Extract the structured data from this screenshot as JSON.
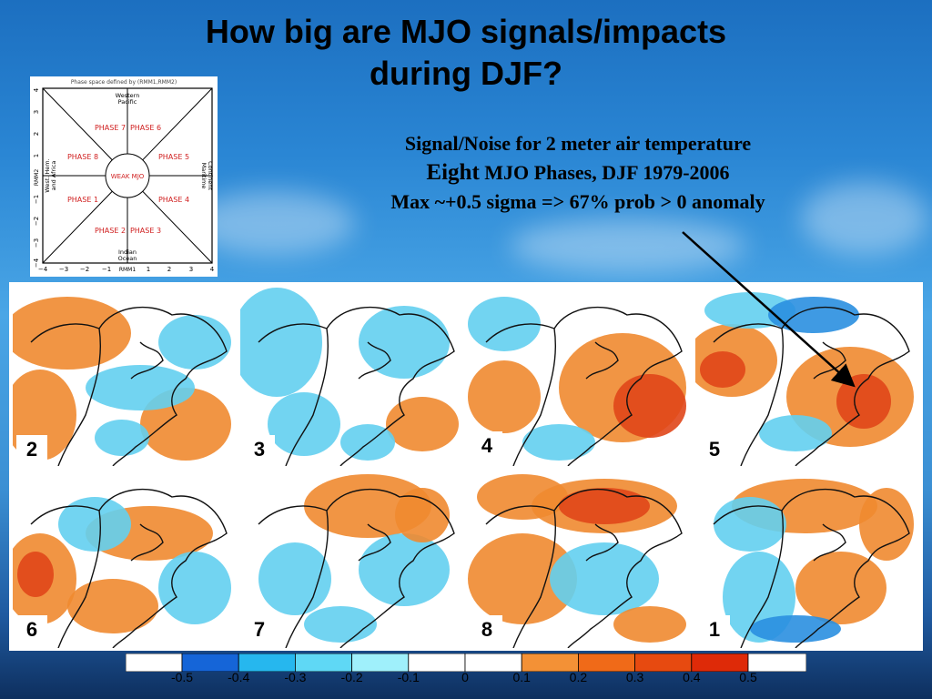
{
  "title_line1": "How big are MJO signals/impacts",
  "title_line2": "during DJF?",
  "subtitle": {
    "line1": "Signal/Noise for 2 meter air temperature",
    "line2_big": "Eight",
    "line2_rest": " MJO Phases, DJF 1979-2006",
    "line3": "Max ~+0.5 sigma => 67% prob > 0 anomaly"
  },
  "phase_diagram": {
    "header": "Phase space defined by (RMM1,RMM2)",
    "top": [
      "Western",
      "Pacific"
    ],
    "bottom": [
      "Indian",
      "Ocean"
    ],
    "left": [
      "West. Hem.",
      "and Africa"
    ],
    "right": [
      "Maritime",
      "Continent"
    ],
    "phases": [
      "PHASE 1",
      "PHASE 2",
      "PHASE 3",
      "PHASE 4",
      "PHASE 5",
      "PHASE 6",
      "PHASE 7",
      "PHASE 8"
    ],
    "center": "WEAK MJO",
    "x_axis_label": "RMM1",
    "y_axis_label": "RMM2",
    "x_ticks": [
      "−4",
      "−3",
      "−2",
      "−1",
      "RMM1",
      "1",
      "2",
      "3",
      "4"
    ],
    "y_ticks": [
      "4",
      "3",
      "2",
      "1",
      "RMM2",
      "−1",
      "−2",
      "−3",
      "−4"
    ]
  },
  "maps": [
    {
      "phase": "2"
    },
    {
      "phase": "3"
    },
    {
      "phase": "4"
    },
    {
      "phase": "5"
    },
    {
      "phase": "6"
    },
    {
      "phase": "7"
    },
    {
      "phase": "8"
    },
    {
      "phase": "1"
    }
  ],
  "colorbar": {
    "labels": [
      "-0.5",
      "-0.4",
      "-0.3",
      "-0.2",
      "-0.1",
      "0",
      "0.1",
      "0.2",
      "0.3",
      "0.4",
      "0.5"
    ],
    "colors": [
      "#ffffff",
      "#1565d8",
      "#26b7ee",
      "#5fd8f5",
      "#9ff0fb",
      "#ffffff",
      "#ffffff",
      "#f39136",
      "#f06a18",
      "#e74a10",
      "#de2a08",
      "#ffffff"
    ],
    "series_colors": {
      "negative_strong": "#2a8fe0",
      "negative": "#63cff0",
      "positive": "#f08a30",
      "positive_strong": "#e0461a"
    }
  }
}
